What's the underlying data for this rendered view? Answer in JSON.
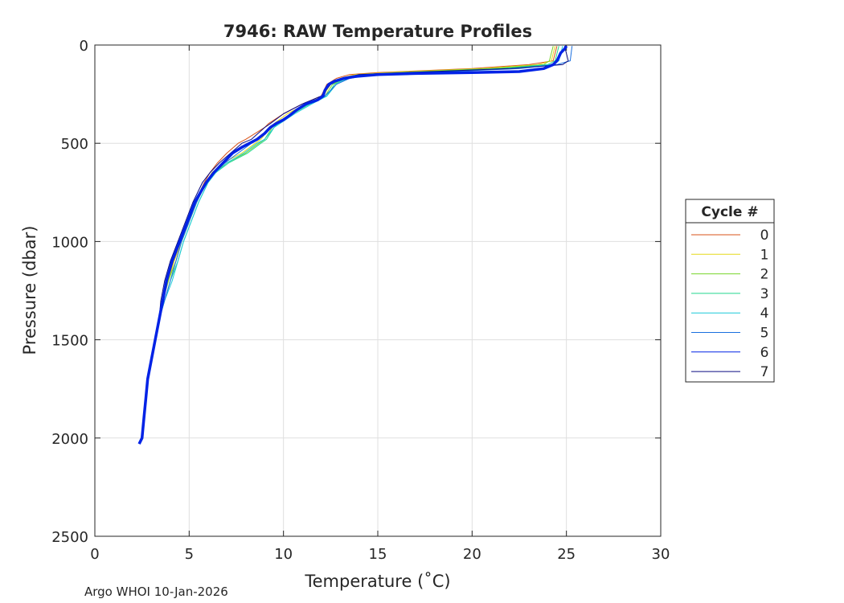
{
  "chart_data": {
    "type": "line",
    "title": "7946: RAW Temperature Profiles",
    "xlabel": "Temperature (˚C)",
    "ylabel": "Pressure (dbar)",
    "xlim": [
      0,
      30
    ],
    "ylim": [
      0,
      2500
    ],
    "y_reversed": true,
    "grid": true,
    "xticks": [
      0,
      5,
      10,
      15,
      20,
      25,
      30
    ],
    "yticks": [
      0,
      500,
      1000,
      1500,
      2000,
      2500
    ],
    "legend_title": "Cycle #",
    "legend_position": "outside-right",
    "series": [
      {
        "name": "0",
        "color": "#d95319",
        "pressure": [
          5,
          80,
          100,
          120,
          140,
          150,
          170,
          200,
          260,
          300,
          350,
          400,
          420,
          480,
          500,
          550,
          600,
          650,
          700,
          800,
          900,
          1000,
          1100,
          1200,
          1300,
          1400,
          1500,
          1600,
          1700,
          1800,
          1900,
          2000,
          2030
        ],
        "temperature": [
          24.5,
          24.3,
          23.0,
          20.0,
          15.0,
          13.5,
          12.8,
          12.3,
          12.0,
          11.0,
          10.0,
          9.2,
          9.0,
          8.0,
          7.6,
          7.0,
          6.5,
          6.1,
          5.8,
          5.3,
          4.9,
          4.5,
          4.2,
          3.9,
          3.6,
          3.4,
          3.2,
          3.0,
          2.8,
          2.7,
          2.6,
          2.5,
          2.4
        ]
      },
      {
        "name": "1",
        "color": "#e6d81a",
        "pressure": [
          5,
          80,
          100,
          120,
          140,
          150,
          170,
          200,
          260,
          300,
          350,
          400,
          420,
          480,
          500,
          550,
          600,
          650,
          700,
          800,
          900,
          1000,
          1100,
          1200,
          1300,
          1400,
          1500,
          1600,
          1700,
          1800,
          1900,
          2000,
          2030
        ],
        "temperature": [
          24.4,
          24.2,
          23.5,
          20.5,
          15.5,
          13.8,
          13.0,
          12.5,
          12.1,
          11.2,
          10.2,
          9.5,
          9.3,
          8.8,
          8.5,
          7.8,
          6.8,
          6.2,
          5.9,
          5.4,
          5.0,
          4.6,
          4.2,
          3.9,
          3.6,
          3.4,
          3.2,
          3.0,
          2.8,
          2.7,
          2.6,
          2.5,
          2.4
        ]
      },
      {
        "name": "2",
        "color": "#77d42a",
        "pressure": [
          5,
          80,
          100,
          120,
          140,
          150,
          170,
          200,
          260,
          300,
          350,
          400,
          420,
          480,
          500,
          550,
          600,
          650,
          700,
          800,
          900,
          1000,
          1100,
          1200,
          1300,
          1400,
          1500,
          1600,
          1700,
          1800,
          1900,
          2000,
          2030
        ],
        "temperature": [
          24.3,
          24.1,
          23.8,
          21.0,
          16.0,
          14.0,
          13.2,
          12.6,
          12.2,
          11.3,
          10.4,
          9.6,
          9.4,
          9.0,
          8.7,
          8.0,
          7.0,
          6.3,
          5.9,
          5.4,
          5.0,
          4.6,
          4.3,
          3.9,
          3.6,
          3.4,
          3.2,
          3.0,
          2.8,
          2.7,
          2.6,
          2.5,
          2.4
        ]
      },
      {
        "name": "3",
        "color": "#22d88f",
        "pressure": [
          5,
          80,
          100,
          120,
          140,
          150,
          170,
          200,
          260,
          300,
          350,
          400,
          420,
          480,
          500,
          550,
          600,
          650,
          700,
          800,
          900,
          1000,
          1100,
          1200,
          1300,
          1400,
          1500,
          1600,
          1700,
          1800,
          1900,
          2000,
          2030
        ],
        "temperature": [
          24.6,
          24.4,
          24.0,
          21.5,
          16.5,
          14.2,
          13.3,
          12.7,
          12.3,
          11.4,
          10.5,
          9.7,
          9.5,
          9.1,
          8.8,
          8.1,
          7.1,
          6.4,
          6.0,
          5.5,
          5.1,
          4.7,
          4.4,
          4.0,
          3.7,
          3.4,
          3.2,
          3.0,
          2.8,
          2.7,
          2.6,
          2.5,
          2.4
        ]
      },
      {
        "name": "4",
        "color": "#1ac8d8",
        "pressure": [
          5,
          80,
          100,
          120,
          140,
          150,
          170,
          200,
          260,
          300,
          350,
          400,
          420,
          480,
          500,
          550,
          600,
          650,
          700,
          800,
          900,
          1000,
          1100,
          1200,
          1300,
          1400,
          1500,
          1600,
          1700,
          1800,
          1900,
          2000,
          2030
        ],
        "temperature": [
          24.8,
          24.6,
          24.2,
          22.0,
          17.0,
          14.5,
          13.4,
          12.8,
          12.3,
          11.5,
          10.6,
          9.8,
          9.5,
          9.0,
          8.6,
          7.9,
          7.0,
          6.4,
          6.0,
          5.5,
          5.1,
          4.7,
          4.4,
          4.1,
          3.7,
          3.4,
          3.2,
          3.0,
          2.8,
          2.7,
          2.6,
          2.5,
          2.4
        ]
      },
      {
        "name": "5",
        "color": "#1a6fdf",
        "pressure": [
          5,
          80,
          100,
          120,
          140,
          150,
          170,
          200,
          260,
          300,
          350,
          400,
          420,
          480,
          500,
          550,
          600,
          650,
          700,
          800,
          900,
          1000,
          1100,
          1200,
          1300,
          1400,
          1500,
          1600,
          1700,
          1800,
          1900,
          2000,
          2030
        ],
        "temperature": [
          25.3,
          25.2,
          24.5,
          22.5,
          17.5,
          14.8,
          13.5,
          12.8,
          12.2,
          11.3,
          10.4,
          9.6,
          9.3,
          8.7,
          8.3,
          7.6,
          6.9,
          6.3,
          5.9,
          5.4,
          5.0,
          4.6,
          4.3,
          4.0,
          3.7,
          3.4,
          3.2,
          3.0,
          2.8,
          2.7,
          2.6,
          2.5,
          2.4
        ]
      },
      {
        "name": "6",
        "color": "#0022e6",
        "pressure": [
          5,
          20,
          40,
          60,
          80,
          100,
          120,
          135,
          140,
          145,
          150,
          160,
          170,
          185,
          200,
          230,
          260,
          280,
          300,
          330,
          360,
          380,
          400,
          420,
          450,
          480,
          500,
          520,
          550,
          600,
          650,
          700,
          750,
          800,
          900,
          1000,
          1100,
          1200,
          1300,
          1400,
          1500,
          1600,
          1700,
          1800,
          1900,
          2000,
          2030
        ],
        "temperature": [
          25.0,
          24.9,
          24.7,
          24.6,
          24.5,
          24.3,
          23.8,
          22.5,
          20.0,
          17.0,
          15.0,
          13.8,
          13.2,
          12.7,
          12.4,
          12.2,
          12.1,
          11.8,
          11.2,
          10.7,
          10.3,
          10.0,
          9.6,
          9.3,
          9.0,
          8.6,
          8.2,
          7.8,
          7.3,
          6.8,
          6.3,
          5.9,
          5.6,
          5.3,
          4.9,
          4.5,
          4.1,
          3.8,
          3.6,
          3.4,
          3.2,
          3.0,
          2.8,
          2.7,
          2.6,
          2.5,
          2.35
        ]
      },
      {
        "name": "7",
        "color": "#0a0a80",
        "pressure": [
          5,
          80,
          100,
          120,
          140,
          150,
          170,
          200,
          260,
          300,
          350,
          400,
          420,
          480,
          500,
          550,
          600,
          650,
          700,
          800,
          900,
          1000,
          1100,
          1200,
          1300,
          1400,
          1500,
          1600,
          1700,
          1800,
          1900,
          2000,
          2030
        ],
        "temperature": [
          24.9,
          25.1,
          24.8,
          22.0,
          16.5,
          14.0,
          13.1,
          12.5,
          12.0,
          11.0,
          10.0,
          9.3,
          9.0,
          8.3,
          7.8,
          7.2,
          6.6,
          6.1,
          5.7,
          5.2,
          4.8,
          4.4,
          4.0,
          3.7,
          3.5,
          3.4,
          3.2,
          3.0,
          2.8,
          2.7,
          2.6,
          2.5,
          2.4
        ]
      }
    ]
  },
  "footer": {
    "text": "Argo WHOI 10-Jan-2026"
  }
}
